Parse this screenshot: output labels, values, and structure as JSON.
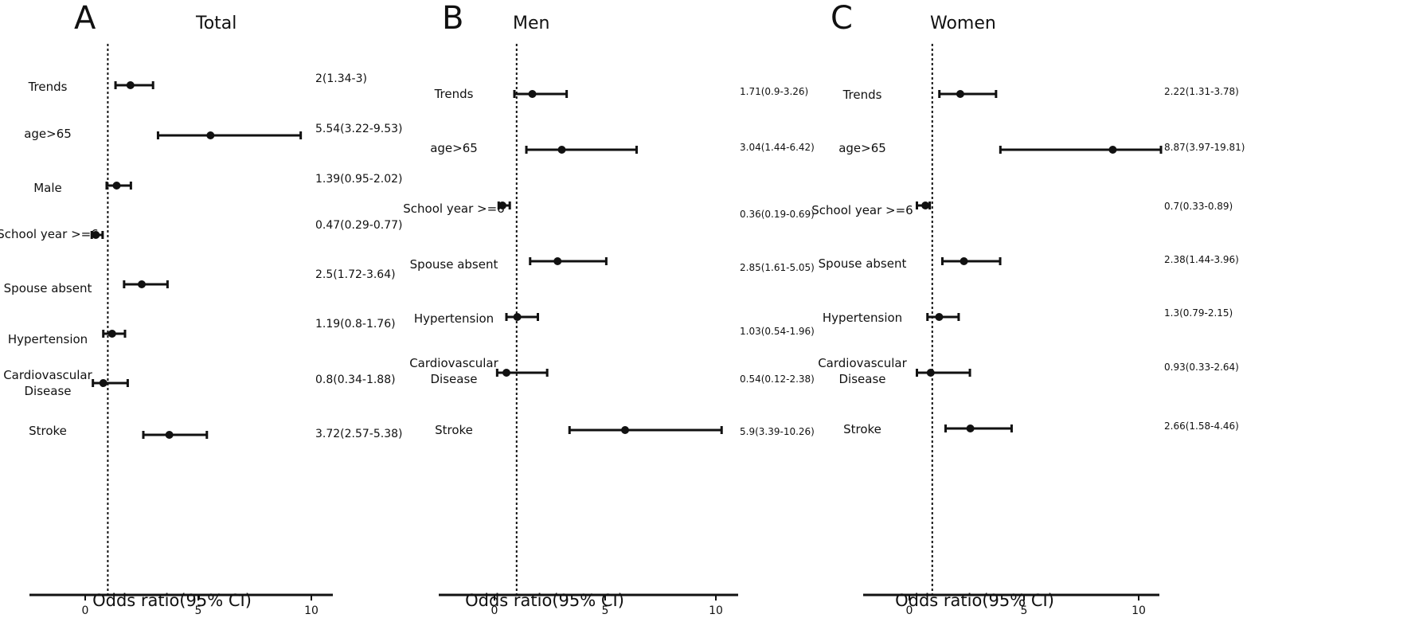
{
  "chart_data": [
    {
      "type": "forest",
      "panel_letter": "A",
      "title": "Total",
      "xlabel": "Odds ratio(95%  CI)",
      "xlim": [
        -2.5,
        11
      ],
      "ticks": [
        0,
        5,
        10
      ],
      "tick_labels": [
        "0",
        "5",
        "10"
      ],
      "reference_line": 1,
      "rows": [
        {
          "label": [
            "Trends"
          ],
          "or": 2,
          "lower": 1.34,
          "upper": 3,
          "text": "2(1.34-3)"
        },
        {
          "label": [
            "age>65"
          ],
          "or": 5.54,
          "lower": 3.22,
          "upper": 9.53,
          "text": "5.54(3.22-9.53)"
        },
        {
          "label": [
            "Male"
          ],
          "or": 1.39,
          "lower": 0.95,
          "upper": 2.02,
          "text": "1.39(0.95-2.02)"
        },
        {
          "label": [
            "School year >=6"
          ],
          "or": 0.47,
          "lower": 0.29,
          "upper": 0.77,
          "text": "0.47(0.29-0.77)"
        },
        {
          "label": [
            "Spouse absent"
          ],
          "or": 2.5,
          "lower": 1.72,
          "upper": 3.64,
          "text": "2.5(1.72-3.64)"
        },
        {
          "label": [
            "Hypertension"
          ],
          "or": 1.19,
          "lower": 0.8,
          "upper": 1.76,
          "text": "1.19(0.8-1.76)"
        },
        {
          "label": [
            "Cardiovascular",
            "Disease"
          ],
          "or": 0.8,
          "lower": 0.34,
          "upper": 1.88,
          "text": "0.8(0.34-1.88)"
        },
        {
          "label": [
            "Stroke"
          ],
          "or": 3.72,
          "lower": 2.57,
          "upper": 5.38,
          "text": "3.72(2.57-5.38)"
        }
      ]
    },
    {
      "type": "forest",
      "panel_letter": "B",
      "title": "Men",
      "xlabel": "Odds ratio(95%  CI)",
      "xlim": [
        -2.5,
        11
      ],
      "ticks": [
        0,
        5,
        10
      ],
      "tick_labels": [
        "0",
        "5",
        "10"
      ],
      "reference_line": 1,
      "rows": [
        {
          "label": [
            "Trends"
          ],
          "or": 1.71,
          "lower": 0.9,
          "upper": 3.26,
          "text": "1.71(0.9-3.26)"
        },
        {
          "label": [
            "age>65"
          ],
          "or": 3.04,
          "lower": 1.44,
          "upper": 6.42,
          "text": "3.04(1.44-6.42)"
        },
        {
          "label": [
            "School year >=6"
          ],
          "or": 0.36,
          "lower": 0.19,
          "upper": 0.69,
          "text": "0.36(0.19-0.69)"
        },
        {
          "label": [
            "Spouse absent"
          ],
          "or": 2.85,
          "lower": 1.61,
          "upper": 5.05,
          "text": "2.85(1.61-5.05)"
        },
        {
          "label": [
            "Hypertension"
          ],
          "or": 1.03,
          "lower": 0.54,
          "upper": 1.96,
          "text": "1.03(0.54-1.96)"
        },
        {
          "label": [
            "Cardiovascular",
            "Disease"
          ],
          "or": 0.54,
          "lower": 0.12,
          "upper": 2.38,
          "text": "0.54(0.12-2.38)"
        },
        {
          "label": [
            "Stroke"
          ],
          "or": 5.9,
          "lower": 3.39,
          "upper": 10.26,
          "text": "5.9(3.39-10.26)"
        }
      ]
    },
    {
      "type": "forest",
      "panel_letter": "C",
      "title": "Women",
      "xlabel": "Odds ratio(95%  CI)",
      "xlim": [
        -2.5,
        11
      ],
      "ticks": [
        0,
        5,
        10
      ],
      "tick_labels": [
        "0",
        "5",
        "10"
      ],
      "reference_line": 1,
      "rows": [
        {
          "label": [
            "Trends"
          ],
          "or": 2.22,
          "lower": 1.31,
          "upper": 3.78,
          "text": "2.22(1.31-3.78)"
        },
        {
          "label": [
            "age>65"
          ],
          "or": 8.87,
          "lower": 3.97,
          "upper": 19.81,
          "text": "8.87(3.97-19.81)"
        },
        {
          "label": [
            "School year >=6"
          ],
          "or": 0.7,
          "lower": 0.33,
          "upper": 0.89,
          "text": "0.7(0.33-0.89)"
        },
        {
          "label": [
            "Spouse absent"
          ],
          "or": 2.38,
          "lower": 1.44,
          "upper": 3.96,
          "text": "2.38(1.44-3.96)"
        },
        {
          "label": [
            "Hypertension"
          ],
          "or": 1.3,
          "lower": 0.79,
          "upper": 2.15,
          "text": "1.3(0.79-2.15)"
        },
        {
          "label": [
            "Cardiovascular",
            "Disease"
          ],
          "or": 0.93,
          "lower": 0.33,
          "upper": 2.64,
          "text": "0.93(0.33-2.64)"
        },
        {
          "label": [
            "Stroke"
          ],
          "or": 2.66,
          "lower": 1.58,
          "upper": 4.46,
          "text": "2.66(1.58-4.46)"
        }
      ]
    }
  ],
  "colors": {
    "ink": "#111111",
    "background": "#ffffff"
  }
}
